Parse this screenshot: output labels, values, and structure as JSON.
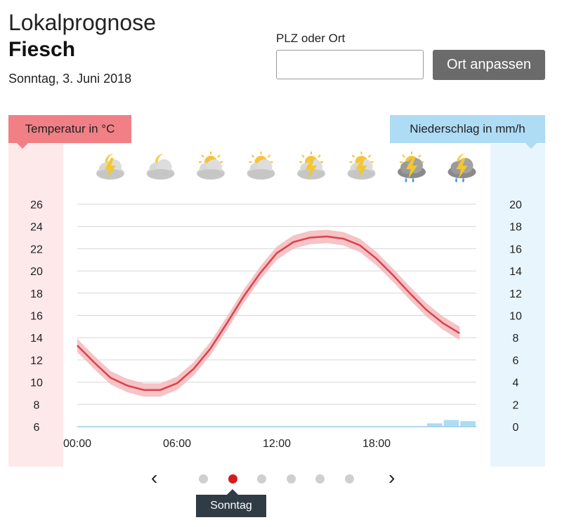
{
  "header": {
    "title": "Lokalprognose",
    "location": "Fiesch",
    "date": "Sonntag, 3. Juni 2018"
  },
  "search": {
    "label": "PLZ oder Ort",
    "placeholder": "",
    "value": "",
    "button_label": "Ort anpassen"
  },
  "chart_labels": {
    "temperature": "Temperatur in °C",
    "precipitation": "Niederschlag in mm/h"
  },
  "weather_icons": [
    "night-cloud-thunder-icon",
    "night-cloud-icon",
    "sun-cloud-icon",
    "sun-cloud-icon",
    "sun-cloud-thunder-icon",
    "sun-cloud-thunder-icon",
    "sun-cloud-thunder-rain-icon",
    "night-cloud-thunder-rain-icon"
  ],
  "colors": {
    "temperature_line": "#d9434c",
    "temperature_band": "#f5b8bc",
    "precipitation_bar": "#aedcf5",
    "active_dot": "#d71920"
  },
  "chart_data": {
    "type": "line",
    "x_ticks": [
      "00:00",
      "06:00",
      "12:00",
      "18:00"
    ],
    "y_left": {
      "ticks": [
        26,
        24,
        22,
        20,
        18,
        16,
        14,
        12,
        10,
        8,
        6
      ],
      "ylim": [
        6,
        26
      ]
    },
    "y_right": {
      "ticks": [
        20,
        18,
        16,
        14,
        12,
        10,
        8,
        6,
        4,
        2,
        0
      ],
      "ylim": [
        0,
        20
      ]
    },
    "grid": true,
    "series": [
      {
        "hours": [
          0,
          1,
          2,
          3,
          4,
          5,
          6,
          7,
          8,
          9,
          10,
          11,
          12,
          13,
          14,
          15,
          16,
          17,
          18,
          19,
          20,
          21,
          22,
          23
        ],
        "values": [
          13.3,
          11.8,
          10.4,
          9.7,
          9.3,
          9.3,
          9.9,
          11.2,
          13.0,
          15.3,
          17.7,
          19.8,
          21.6,
          22.6,
          23.0,
          23.1,
          22.9,
          22.3,
          21.1,
          19.6,
          18.0,
          16.5,
          15.3,
          14.4
        ],
        "band": 0.6
      },
      {
        "hours": [
          0,
          1,
          2,
          3,
          4,
          5,
          6,
          7,
          8,
          9,
          10,
          11,
          12,
          13,
          14,
          15,
          16,
          17,
          18,
          19,
          20,
          21,
          22,
          23
        ],
        "values": [
          0,
          0,
          0,
          0,
          0,
          0,
          0,
          0,
          0,
          0,
          0,
          0,
          0,
          0,
          0,
          0,
          0,
          0,
          0,
          0,
          0,
          0.3,
          0.6,
          0.5
        ]
      }
    ]
  },
  "pager": {
    "prev_symbol": "‹",
    "next_symbol": "›",
    "active_index": 1,
    "count": 6,
    "tooltip": "Sonntag"
  }
}
